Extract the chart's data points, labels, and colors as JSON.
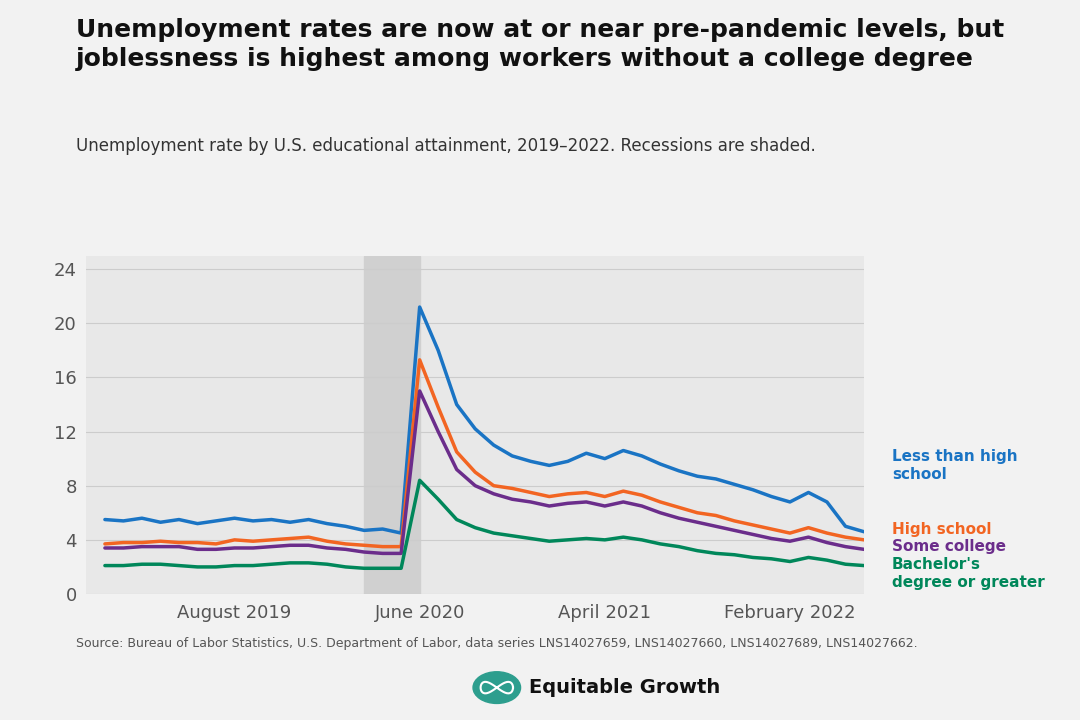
{
  "title": "Unemployment rates are now at or near pre-pandemic levels, but\njoblessness is highest among workers without a college degree",
  "subtitle": "Unemployment rate by U.S. educational attainment, 2019–2022. Recessions are shaded.",
  "source": "Source: Bureau of Labor Statistics, U.S. Department of Labor, data series LNS14027659, LNS14027660, LNS14027689, LNS14027662.",
  "recession_start": 14,
  "recession_end": 17,
  "ylim": [
    0,
    25
  ],
  "yticks": [
    0,
    4,
    8,
    12,
    16,
    20,
    24
  ],
  "xtick_labels": [
    "August 2019",
    "June 2020",
    "April 2021",
    "February 2022"
  ],
  "xtick_positions": [
    7,
    17,
    27,
    37
  ],
  "colors": {
    "less_than_hs": "#1a74c4",
    "high_school": "#f26522",
    "some_college": "#6b2d8b",
    "bachelors": "#00875a"
  },
  "background_color": "#f2f2f2",
  "plot_bg_color": "#e8e8e8",
  "recession_color": "#d0d0d0",
  "less_than_hs": [
    5.5,
    5.4,
    5.6,
    5.3,
    5.5,
    5.2,
    5.4,
    5.6,
    5.4,
    5.5,
    5.3,
    5.5,
    5.2,
    5.0,
    4.7,
    4.8,
    4.5,
    21.2,
    18.0,
    14.0,
    12.2,
    11.0,
    10.2,
    9.8,
    9.5,
    9.8,
    10.4,
    10.0,
    10.6,
    10.2,
    9.6,
    9.1,
    8.7,
    8.5,
    8.1,
    7.7,
    7.2,
    6.8,
    7.5,
    6.8,
    5.0,
    4.6
  ],
  "high_school": [
    3.7,
    3.8,
    3.8,
    3.9,
    3.8,
    3.8,
    3.7,
    4.0,
    3.9,
    4.0,
    4.1,
    4.2,
    3.9,
    3.7,
    3.6,
    3.5,
    3.5,
    17.3,
    13.8,
    10.5,
    9.0,
    8.0,
    7.8,
    7.5,
    7.2,
    7.4,
    7.5,
    7.2,
    7.6,
    7.3,
    6.8,
    6.4,
    6.0,
    5.8,
    5.4,
    5.1,
    4.8,
    4.5,
    4.9,
    4.5,
    4.2,
    4.0
  ],
  "some_college": [
    3.4,
    3.4,
    3.5,
    3.5,
    3.5,
    3.3,
    3.3,
    3.4,
    3.4,
    3.5,
    3.6,
    3.6,
    3.4,
    3.3,
    3.1,
    3.0,
    3.0,
    15.0,
    12.0,
    9.2,
    8.0,
    7.4,
    7.0,
    6.8,
    6.5,
    6.7,
    6.8,
    6.5,
    6.8,
    6.5,
    6.0,
    5.6,
    5.3,
    5.0,
    4.7,
    4.4,
    4.1,
    3.9,
    4.2,
    3.8,
    3.5,
    3.3
  ],
  "bachelors": [
    2.1,
    2.1,
    2.2,
    2.2,
    2.1,
    2.0,
    2.0,
    2.1,
    2.1,
    2.2,
    2.3,
    2.3,
    2.2,
    2.0,
    1.9,
    1.9,
    1.9,
    8.4,
    7.0,
    5.5,
    4.9,
    4.5,
    4.3,
    4.1,
    3.9,
    4.0,
    4.1,
    4.0,
    4.2,
    4.0,
    3.7,
    3.5,
    3.2,
    3.0,
    2.9,
    2.7,
    2.6,
    2.4,
    2.7,
    2.5,
    2.2,
    2.1
  ]
}
